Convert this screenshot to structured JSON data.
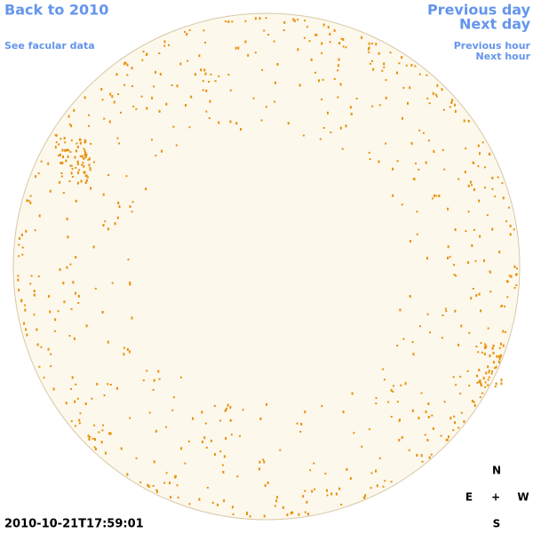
{
  "nav": {
    "back": "Back to 2010",
    "facular": "See facular data",
    "previous_day": "Previous day",
    "next_day": "Next day",
    "previous_hour": "Previous hour",
    "next_hour": "Next hour"
  },
  "timestamp": "2010-10-21T17:59:01",
  "compass": {
    "north": "N",
    "east": "E",
    "center": "+",
    "west": "W",
    "south": "S"
  }
}
